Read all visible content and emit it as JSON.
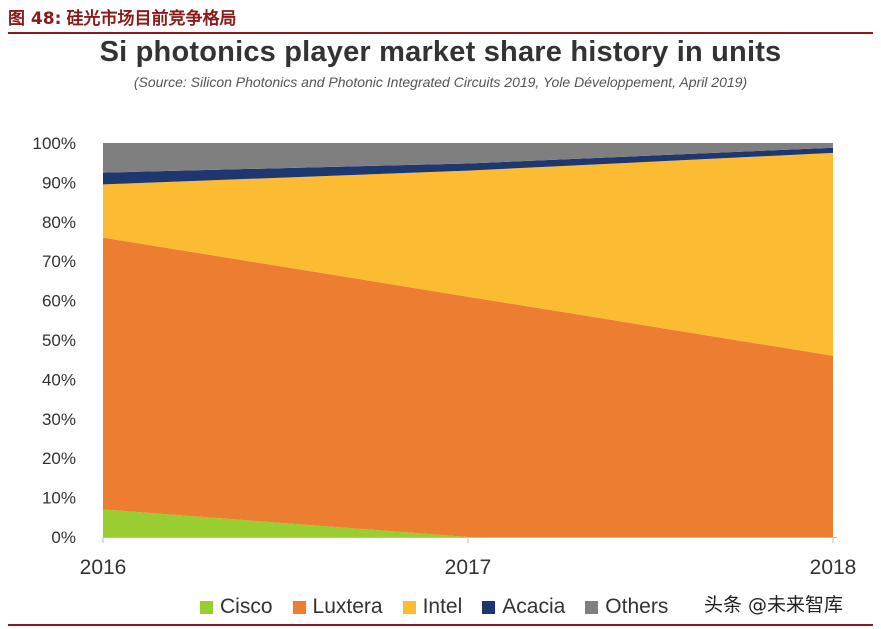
{
  "figure_label": "图 48:",
  "figure_caption": "硅光市场目前竞争格局",
  "watermark": "头条 @未来智库",
  "chart_data": {
    "type": "area",
    "stacked": true,
    "title": "Si photonics player market share history in units",
    "subtitle": "(Source: Silicon Photonics and Photonic Integrated Circuits 2019, Yole Développement, April 2019)",
    "x": [
      "2016",
      "2017",
      "2018"
    ],
    "ylim": [
      0,
      100
    ],
    "yticks": [
      "0%",
      "10%",
      "20%",
      "30%",
      "40%",
      "50%",
      "60%",
      "70%",
      "80%",
      "90%",
      "100%"
    ],
    "series": [
      {
        "name": "Cisco",
        "color": "#9acd32",
        "values": [
          7,
          0,
          0
        ]
      },
      {
        "name": "Luxtera",
        "color": "#ed7d31",
        "values": [
          69,
          61,
          46
        ]
      },
      {
        "name": "Intel",
        "color": "#fbbc34",
        "values": [
          13.5,
          32,
          51.5
        ]
      },
      {
        "name": "Acacia",
        "color": "#1f3770",
        "values": [
          3,
          1.8,
          1.3
        ]
      },
      {
        "name": "Others",
        "color": "#7f7f7f",
        "values": [
          7.5,
          5.2,
          1.2
        ]
      }
    ]
  }
}
